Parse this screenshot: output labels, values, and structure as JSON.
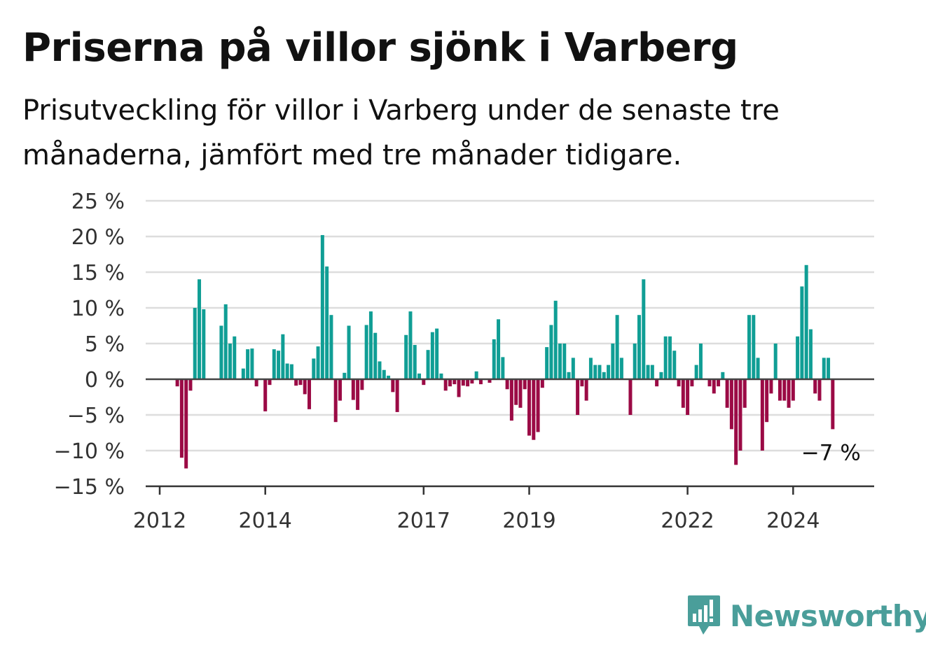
{
  "chart_data": {
    "type": "bar",
    "title": "Priserna på villor sjönk i Varberg",
    "subtitle": "Prisutveckling för villor i Varberg under de senaste tre månaderna, jämfört med tre månader tidigare.",
    "x_ticks": [
      "2012",
      "2014",
      "2017",
      "2019",
      "2022",
      "2024"
    ],
    "y_ticks": [
      "25 %",
      "20 %",
      "15 %",
      "10 %",
      "5 %",
      "0 %",
      "−5 %",
      "−10 %",
      "−15 %"
    ],
    "ylim": [
      -15,
      25
    ],
    "grid": true,
    "positive_color": "#109e95",
    "negative_color": "#9b0a45",
    "annotation": "−7 %",
    "series": [
      {
        "x": "2012-01",
        "y": 0
      },
      {
        "x": "2012-02",
        "y": 0
      },
      {
        "x": "2012-03",
        "y": 0
      },
      {
        "x": "2012-04",
        "y": 0
      },
      {
        "x": "2012-05",
        "y": -1
      },
      {
        "x": "2012-06",
        "y": -11
      },
      {
        "x": "2012-07",
        "y": -12.5
      },
      {
        "x": "2012-08",
        "y": -1.6
      },
      {
        "x": "2012-09",
        "y": 10
      },
      {
        "x": "2012-10",
        "y": 14
      },
      {
        "x": "2012-11",
        "y": 9.8
      },
      {
        "x": "2012-12",
        "y": 0
      },
      {
        "x": "2013-01",
        "y": 0
      },
      {
        "x": "2013-02",
        "y": 0
      },
      {
        "x": "2013-03",
        "y": 7.5
      },
      {
        "x": "2013-04",
        "y": 10.5
      },
      {
        "x": "2013-05",
        "y": 5
      },
      {
        "x": "2013-06",
        "y": 6
      },
      {
        "x": "2013-07",
        "y": 0
      },
      {
        "x": "2013-08",
        "y": 1.5
      },
      {
        "x": "2013-09",
        "y": 4.2
      },
      {
        "x": "2013-10",
        "y": 4.3
      },
      {
        "x": "2013-11",
        "y": -1
      },
      {
        "x": "2013-12",
        "y": 0
      },
      {
        "x": "2014-01",
        "y": -4.5
      },
      {
        "x": "2014-02",
        "y": -0.8
      },
      {
        "x": "2014-03",
        "y": 4.2
      },
      {
        "x": "2014-04",
        "y": 4
      },
      {
        "x": "2014-05",
        "y": 6.3
      },
      {
        "x": "2014-06",
        "y": 2.2
      },
      {
        "x": "2014-07",
        "y": 2.1
      },
      {
        "x": "2014-08",
        "y": -0.9
      },
      {
        "x": "2014-09",
        "y": -0.8
      },
      {
        "x": "2014-10",
        "y": -2.1
      },
      {
        "x": "2014-11",
        "y": -4.2
      },
      {
        "x": "2014-12",
        "y": 2.9
      },
      {
        "x": "2015-01",
        "y": 4.6
      },
      {
        "x": "2015-02",
        "y": 20.2
      },
      {
        "x": "2015-03",
        "y": 15.8
      },
      {
        "x": "2015-04",
        "y": 9
      },
      {
        "x": "2015-05",
        "y": -6
      },
      {
        "x": "2015-06",
        "y": -3
      },
      {
        "x": "2015-07",
        "y": 0.9
      },
      {
        "x": "2015-08",
        "y": 7.5
      },
      {
        "x": "2015-09",
        "y": -2.9
      },
      {
        "x": "2015-10",
        "y": -4.3
      },
      {
        "x": "2015-11",
        "y": -1.5
      },
      {
        "x": "2015-12",
        "y": 7.6
      },
      {
        "x": "2016-01",
        "y": 9.5
      },
      {
        "x": "2016-02",
        "y": 6.5
      },
      {
        "x": "2016-03",
        "y": 2.5
      },
      {
        "x": "2016-04",
        "y": 1.3
      },
      {
        "x": "2016-05",
        "y": 0.5
      },
      {
        "x": "2016-06",
        "y": -1.8
      },
      {
        "x": "2016-07",
        "y": -4.6
      },
      {
        "x": "2016-08",
        "y": 0
      },
      {
        "x": "2016-09",
        "y": 6.2
      },
      {
        "x": "2016-10",
        "y": 9.5
      },
      {
        "x": "2016-11",
        "y": 4.8
      },
      {
        "x": "2016-12",
        "y": 0.8
      },
      {
        "x": "2017-01",
        "y": -0.8
      },
      {
        "x": "2017-02",
        "y": 4.1
      },
      {
        "x": "2017-03",
        "y": 6.6
      },
      {
        "x": "2017-04",
        "y": 7.1
      },
      {
        "x": "2017-05",
        "y": 0.8
      },
      {
        "x": "2017-06",
        "y": -1.6
      },
      {
        "x": "2017-07",
        "y": -1
      },
      {
        "x": "2017-08",
        "y": -0.7
      },
      {
        "x": "2017-09",
        "y": -2.5
      },
      {
        "x": "2017-10",
        "y": -0.9
      },
      {
        "x": "2017-11",
        "y": -1
      },
      {
        "x": "2017-12",
        "y": -0.6
      },
      {
        "x": "2018-01",
        "y": 1.1
      },
      {
        "x": "2018-02",
        "y": -0.7
      },
      {
        "x": "2018-03",
        "y": 0
      },
      {
        "x": "2018-04",
        "y": -0.5
      },
      {
        "x": "2018-05",
        "y": 5.6
      },
      {
        "x": "2018-06",
        "y": 8.4
      },
      {
        "x": "2018-07",
        "y": 3.1
      },
      {
        "x": "2018-08",
        "y": -1.4
      },
      {
        "x": "2018-09",
        "y": -5.8
      },
      {
        "x": "2018-10",
        "y": -3.6
      },
      {
        "x": "2018-11",
        "y": -4
      },
      {
        "x": "2018-12",
        "y": -1.4
      },
      {
        "x": "2019-01",
        "y": -7.9
      },
      {
        "x": "2019-02",
        "y": -8.5
      },
      {
        "x": "2019-03",
        "y": -7.4
      },
      {
        "x": "2019-04",
        "y": -1.2
      },
      {
        "x": "2019-05",
        "y": 4.5
      },
      {
        "x": "2019-06",
        "y": 7.6
      },
      {
        "x": "2019-07",
        "y": 11
      },
      {
        "x": "2019-08",
        "y": 5
      },
      {
        "x": "2019-09",
        "y": 5
      },
      {
        "x": "2019-10",
        "y": 1
      },
      {
        "x": "2019-11",
        "y": 3
      },
      {
        "x": "2019-12",
        "y": -5
      },
      {
        "x": "2020-01",
        "y": -1
      },
      {
        "x": "2020-02",
        "y": -3
      },
      {
        "x": "2020-03",
        "y": 3
      },
      {
        "x": "2020-04",
        "y": 2
      },
      {
        "x": "2020-05",
        "y": 2
      },
      {
        "x": "2020-06",
        "y": 1
      },
      {
        "x": "2020-07",
        "y": 2
      },
      {
        "x": "2020-08",
        "y": 5
      },
      {
        "x": "2020-09",
        "y": 9
      },
      {
        "x": "2020-10",
        "y": 3
      },
      {
        "x": "2020-11",
        "y": 0
      },
      {
        "x": "2020-12",
        "y": -5
      },
      {
        "x": "2021-01",
        "y": 5
      },
      {
        "x": "2021-02",
        "y": 9
      },
      {
        "x": "2021-03",
        "y": 14
      },
      {
        "x": "2021-04",
        "y": 2
      },
      {
        "x": "2021-05",
        "y": 2
      },
      {
        "x": "2021-06",
        "y": -1
      },
      {
        "x": "2021-07",
        "y": 1
      },
      {
        "x": "2021-08",
        "y": 6
      },
      {
        "x": "2021-09",
        "y": 6
      },
      {
        "x": "2021-10",
        "y": 4
      },
      {
        "x": "2021-11",
        "y": -1
      },
      {
        "x": "2021-12",
        "y": -4
      },
      {
        "x": "2022-01",
        "y": -5
      },
      {
        "x": "2022-02",
        "y": -1
      },
      {
        "x": "2022-03",
        "y": 2
      },
      {
        "x": "2022-04",
        "y": 5
      },
      {
        "x": "2022-05",
        "y": 0
      },
      {
        "x": "2022-06",
        "y": -1
      },
      {
        "x": "2022-07",
        "y": -2
      },
      {
        "x": "2022-08",
        "y": -1
      },
      {
        "x": "2022-09",
        "y": 1
      },
      {
        "x": "2022-10",
        "y": -4
      },
      {
        "x": "2022-11",
        "y": -7
      },
      {
        "x": "2022-12",
        "y": -12
      },
      {
        "x": "2023-01",
        "y": -10
      },
      {
        "x": "2023-02",
        "y": -4
      },
      {
        "x": "2023-03",
        "y": 9
      },
      {
        "x": "2023-04",
        "y": 9
      },
      {
        "x": "2023-05",
        "y": 3
      },
      {
        "x": "2023-06",
        "y": -10
      },
      {
        "x": "2023-07",
        "y": -6
      },
      {
        "x": "2023-08",
        "y": -2
      },
      {
        "x": "2023-09",
        "y": 5
      },
      {
        "x": "2023-10",
        "y": -3
      },
      {
        "x": "2023-11",
        "y": -3
      },
      {
        "x": "2023-12",
        "y": -4
      },
      {
        "x": "2024-01",
        "y": -3
      },
      {
        "x": "2024-02",
        "y": 6
      },
      {
        "x": "2024-03",
        "y": 13
      },
      {
        "x": "2024-04",
        "y": 16
      },
      {
        "x": "2024-05",
        "y": 7
      },
      {
        "x": "2024-06",
        "y": -2
      },
      {
        "x": "2024-07",
        "y": -3
      },
      {
        "x": "2024-08",
        "y": 3
      },
      {
        "x": "2024-09",
        "y": 3
      },
      {
        "x": "2024-10",
        "y": -7
      }
    ]
  },
  "logo": {
    "text": "Newsworthy",
    "color": "#4a9e9a"
  }
}
